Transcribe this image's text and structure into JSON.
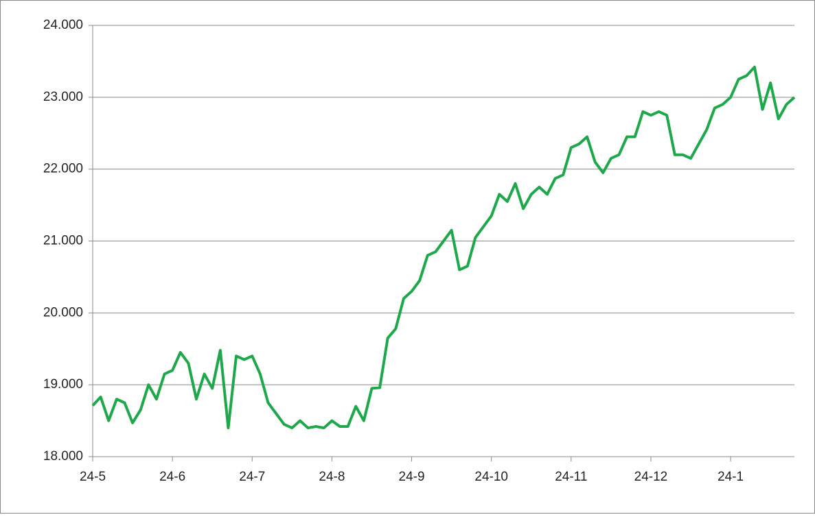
{
  "chart_data": {
    "type": "line",
    "categories": [
      "24-5",
      null,
      null,
      null,
      null,
      null,
      null,
      null,
      null,
      null,
      "24-6",
      null,
      null,
      null,
      null,
      null,
      null,
      null,
      null,
      null,
      "24-7",
      null,
      null,
      null,
      null,
      null,
      null,
      null,
      null,
      null,
      "24-8",
      null,
      null,
      null,
      null,
      null,
      null,
      null,
      null,
      null,
      "24-9",
      null,
      null,
      null,
      null,
      null,
      null,
      null,
      null,
      null,
      "24-10",
      null,
      null,
      null,
      null,
      null,
      null,
      null,
      null,
      null,
      "24-11",
      null,
      null,
      null,
      null,
      null,
      null,
      null,
      null,
      null,
      "24-12",
      null,
      null,
      null,
      null,
      null,
      null,
      null,
      null,
      null,
      "24-1",
      null,
      null,
      null,
      null,
      null,
      null,
      null,
      null
    ],
    "series": [
      {
        "color": "#1fa84b",
        "values": [
          18710,
          18830,
          18500,
          18800,
          18750,
          18470,
          18650,
          19000,
          18800,
          19150,
          19200,
          19450,
          19300,
          18800,
          19150,
          18950,
          19480,
          18400,
          19400,
          19350,
          19400,
          19150,
          18750,
          18600,
          18450,
          18400,
          18500,
          18400,
          18420,
          18400,
          18500,
          18420,
          18420,
          18700,
          18500,
          18950,
          18960,
          19650,
          19780,
          20200,
          20300,
          20450,
          20800,
          20850,
          21000,
          21150,
          20600,
          20650,
          21050,
          21200,
          21350,
          21650,
          21550,
          21800,
          21450,
          21650,
          21750,
          21650,
          21870,
          21920,
          22300,
          22350,
          22450,
          22100,
          21950,
          22150,
          22200,
          22450,
          22450,
          22800,
          22750,
          22800,
          22750,
          22200,
          22200,
          22150,
          22350,
          22550,
          22850,
          22900,
          23000,
          23250,
          23300,
          23420,
          22830,
          23200,
          22700,
          22900,
          23000
        ]
      }
    ],
    "ylim": [
      18000,
      24000
    ],
    "yticks": [
      {
        "value": 18000,
        "label": "18.000"
      },
      {
        "value": 19000,
        "label": "19.000"
      },
      {
        "value": 20000,
        "label": "20.000"
      },
      {
        "value": 21000,
        "label": "21.000"
      },
      {
        "value": 22000,
        "label": "22.000"
      },
      {
        "value": 23000,
        "label": "23.000"
      },
      {
        "value": 24000,
        "label": "24.000"
      }
    ],
    "grid": true
  }
}
